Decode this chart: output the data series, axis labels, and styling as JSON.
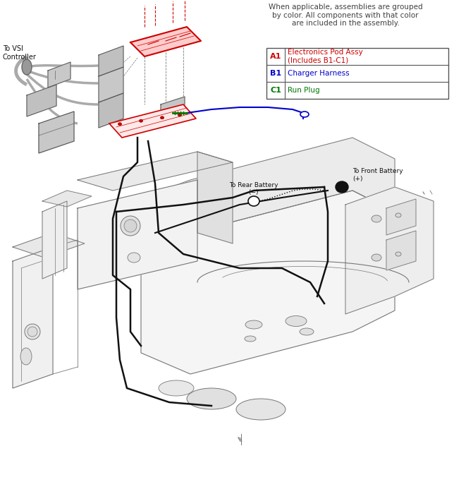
{
  "legend_note": "When applicable, assemblies are grouped\nby color. All components with that color\nare included in the assembly.",
  "legend_items": [
    {
      "code": "A1",
      "description": "Electronics Pod Assy\n(Includes B1-C1)",
      "code_color": "#cc0000",
      "desc_color": "#cc0000"
    },
    {
      "code": "B1",
      "description": "Charger Harness",
      "code_color": "#0000cc",
      "desc_color": "#0000cc"
    },
    {
      "code": "C1",
      "description": "Run Plug",
      "code_color": "#007700",
      "desc_color": "#007700"
    }
  ],
  "label_vsi": "To VSI\nController",
  "label_rear_battery": "To Rear Battery\n(−)",
  "label_front_battery": "To Front Battery\n(+)",
  "bg_color": "#ffffff",
  "line_color": "#000000",
  "note_color": "#404040",
  "table_border_color": "#555555",
  "figsize": [
    6.44,
    7.0
  ],
  "dpi": 100
}
